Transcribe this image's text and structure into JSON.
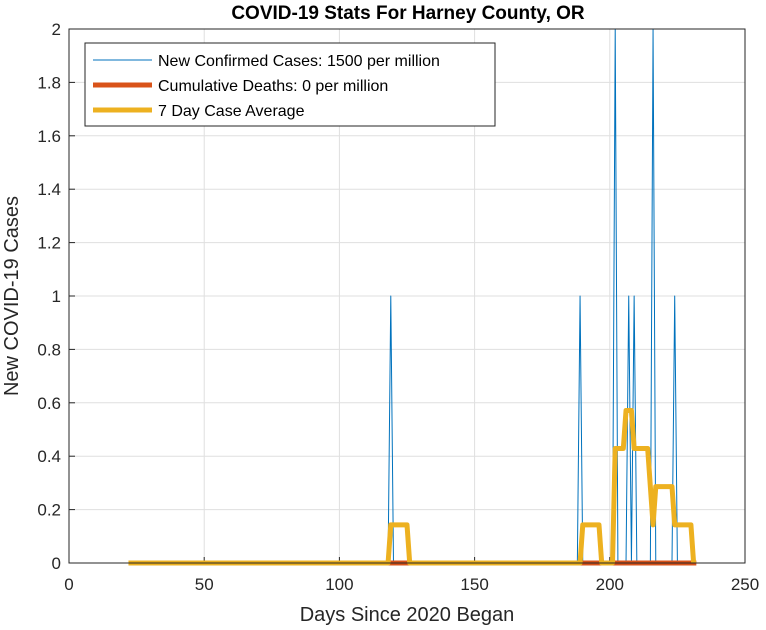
{
  "chart_data": {
    "type": "line",
    "title": "COVID-19 Stats For Harney County, OR",
    "xlabel": "Days Since 2020 Began",
    "ylabel": "New COVID-19 Cases",
    "xlim": [
      0,
      250
    ],
    "ylim": [
      0,
      2
    ],
    "xticks": [
      0,
      50,
      100,
      150,
      200,
      250
    ],
    "yticks": [
      0,
      0.2,
      0.4,
      0.6,
      0.8,
      1,
      1.2,
      1.4,
      1.6,
      1.8,
      2
    ],
    "grid": true,
    "legend_position": "top-left",
    "series": [
      {
        "name": "New Confirmed Cases: 1500 per million",
        "color": "#0072BD",
        "line_width": "thin",
        "x": [
          22,
          118,
          119,
          120,
          188,
          189,
          190,
          201,
          202,
          203,
          206,
          207,
          208,
          209,
          210,
          215,
          216,
          217,
          223,
          224,
          225,
          232
        ],
        "y": [
          0,
          0,
          1,
          0,
          0,
          1,
          0,
          0,
          2,
          0,
          0,
          1,
          0,
          1,
          0,
          0,
          2,
          0,
          0,
          1,
          0,
          0
        ]
      },
      {
        "name": "Cumulative Deaths: 0 per million",
        "color": "#D95319",
        "line_width": "thick",
        "x": [
          22,
          232
        ],
        "y": [
          0,
          0
        ]
      },
      {
        "name": "7 Day Case Average",
        "color": "#EDB120",
        "line_width": "thick",
        "x": [
          22,
          118,
          119,
          125,
          126,
          189,
          190,
          196,
          197,
          201,
          202,
          204,
          205,
          206,
          207,
          208,
          209,
          210,
          214,
          215,
          216,
          217,
          223,
          224,
          230,
          231
        ],
        "y": [
          0,
          0,
          0.143,
          0.143,
          0,
          0,
          0.143,
          0.143,
          0,
          0,
          0.429,
          0.429,
          0.429,
          0.571,
          0.571,
          0.571,
          0.429,
          0.429,
          0.429,
          0.286,
          0.143,
          0.286,
          0.286,
          0.143,
          0.143,
          0
        ]
      }
    ]
  }
}
